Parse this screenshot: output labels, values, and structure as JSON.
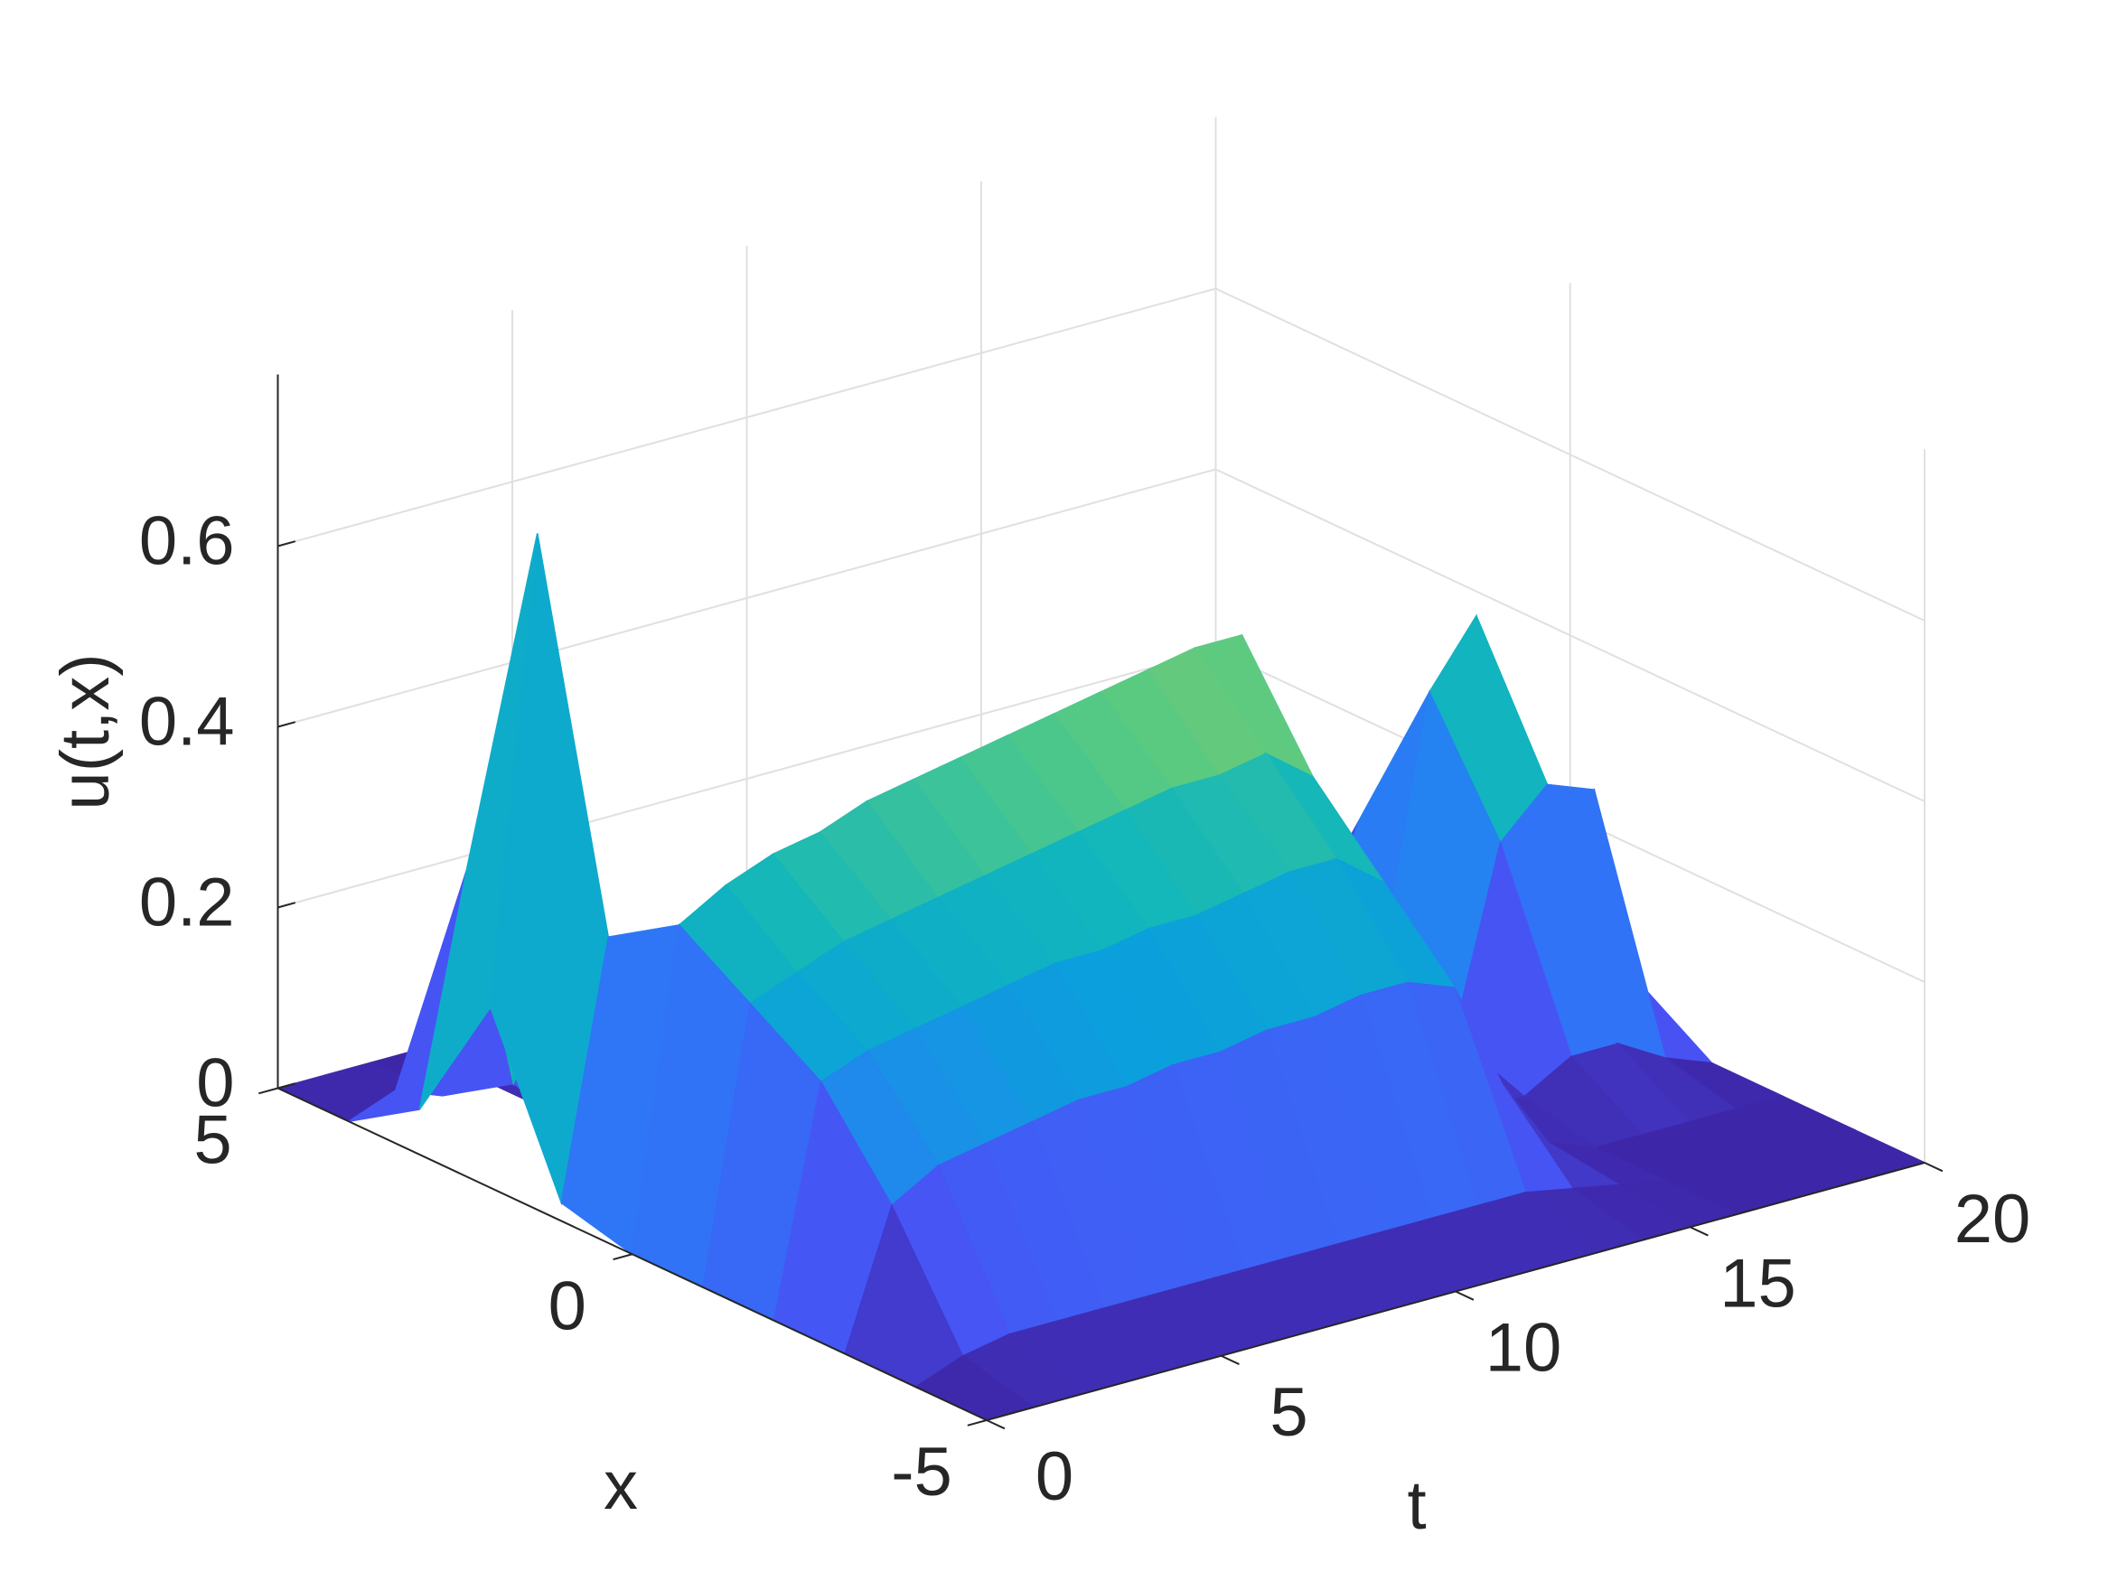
{
  "chart_data": {
    "type": "surface",
    "colormap": "parula",
    "xlabel": "t",
    "ylabel": "x",
    "zlabel": "u(t,x)",
    "x": [
      0,
      1,
      2,
      3,
      4,
      5,
      6,
      7,
      8,
      9,
      10,
      11,
      12,
      13,
      14,
      15,
      16,
      17,
      18,
      19,
      20
    ],
    "y": [
      -5,
      -4,
      -3,
      -2,
      -1,
      0,
      1,
      2,
      3,
      4,
      5
    ],
    "values": [
      [
        0,
        0,
        0,
        0,
        0,
        0,
        0.02,
        0.2,
        0.05,
        0,
        0
      ],
      [
        0,
        0.02,
        0.15,
        0.25,
        0.3,
        0.35,
        0.3,
        0.71,
        0.3,
        0.02,
        0
      ],
      [
        0,
        0.03,
        0.18,
        0.27,
        0.32,
        0.38,
        0.15,
        0.3,
        0.05,
        0,
        0
      ],
      [
        0,
        0.03,
        0.19,
        0.28,
        0.34,
        0.4,
        0.1,
        0.02,
        0,
        0,
        0
      ],
      [
        0,
        0.03,
        0.2,
        0.29,
        0.35,
        0.41,
        0.1,
        0.01,
        0,
        0,
        0
      ],
      [
        0,
        0.03,
        0.21,
        0.3,
        0.36,
        0.43,
        0.1,
        0,
        0,
        0,
        0
      ],
      [
        0,
        0.03,
        0.21,
        0.31,
        0.37,
        0.44,
        0.11,
        0,
        0,
        0,
        0
      ],
      [
        0,
        0.03,
        0.22,
        0.31,
        0.38,
        0.45,
        0.11,
        0,
        0,
        0,
        0
      ],
      [
        0,
        0.03,
        0.22,
        0.32,
        0.39,
        0.46,
        0.11,
        0,
        0,
        0,
        0
      ],
      [
        0,
        0.03,
        0.23,
        0.32,
        0.4,
        0.47,
        0.12,
        0,
        0,
        0,
        0
      ],
      [
        0,
        0.03,
        0.23,
        0.33,
        0.41,
        0.48,
        0.12,
        0,
        0,
        0,
        0
      ],
      [
        0,
        0.03,
        0.24,
        0.34,
        0.41,
        0.49,
        0.12,
        0,
        0,
        0,
        0
      ],
      [
        0,
        0.03,
        0.24,
        0.34,
        0.42,
        0.5,
        0.12,
        0,
        0,
        0,
        0
      ],
      [
        0,
        0.03,
        0.22,
        0.3,
        0.38,
        0.5,
        0.1,
        0,
        0,
        0,
        0
      ],
      [
        0,
        0.02,
        0.1,
        0.1,
        0.12,
        0.15,
        0.05,
        0,
        0,
        0,
        0
      ],
      [
        0,
        0.01,
        0.02,
        0.02,
        0.03,
        0.03,
        0.01,
        0,
        0,
        0,
        0
      ],
      [
        0,
        0,
        0,
        0.02,
        0.05,
        0.1,
        0.05,
        0,
        0,
        0,
        0
      ],
      [
        0,
        0,
        0,
        0.05,
        0.25,
        0.38,
        0.2,
        0.02,
        0,
        0,
        0
      ],
      [
        0,
        0,
        0,
        0.05,
        0.3,
        0.45,
        0.25,
        0.02,
        0,
        0,
        0
      ],
      [
        0,
        0,
        0,
        0.02,
        0.28,
        0.1,
        0.02,
        0,
        0,
        0,
        0
      ],
      [
        0,
        0,
        0,
        0,
        0.05,
        0.02,
        0,
        0,
        0,
        0,
        0
      ]
    ],
    "xlim": [
      0,
      20
    ],
    "ylim": [
      -5,
      5
    ],
    "zlim": [
      0,
      0.79
    ],
    "xticks": [
      0,
      5,
      10,
      15,
      20
    ],
    "yticks": [
      -5,
      0,
      5
    ],
    "zticks": [
      0,
      0.2,
      0.4,
      0.6
    ],
    "grid": true
  }
}
